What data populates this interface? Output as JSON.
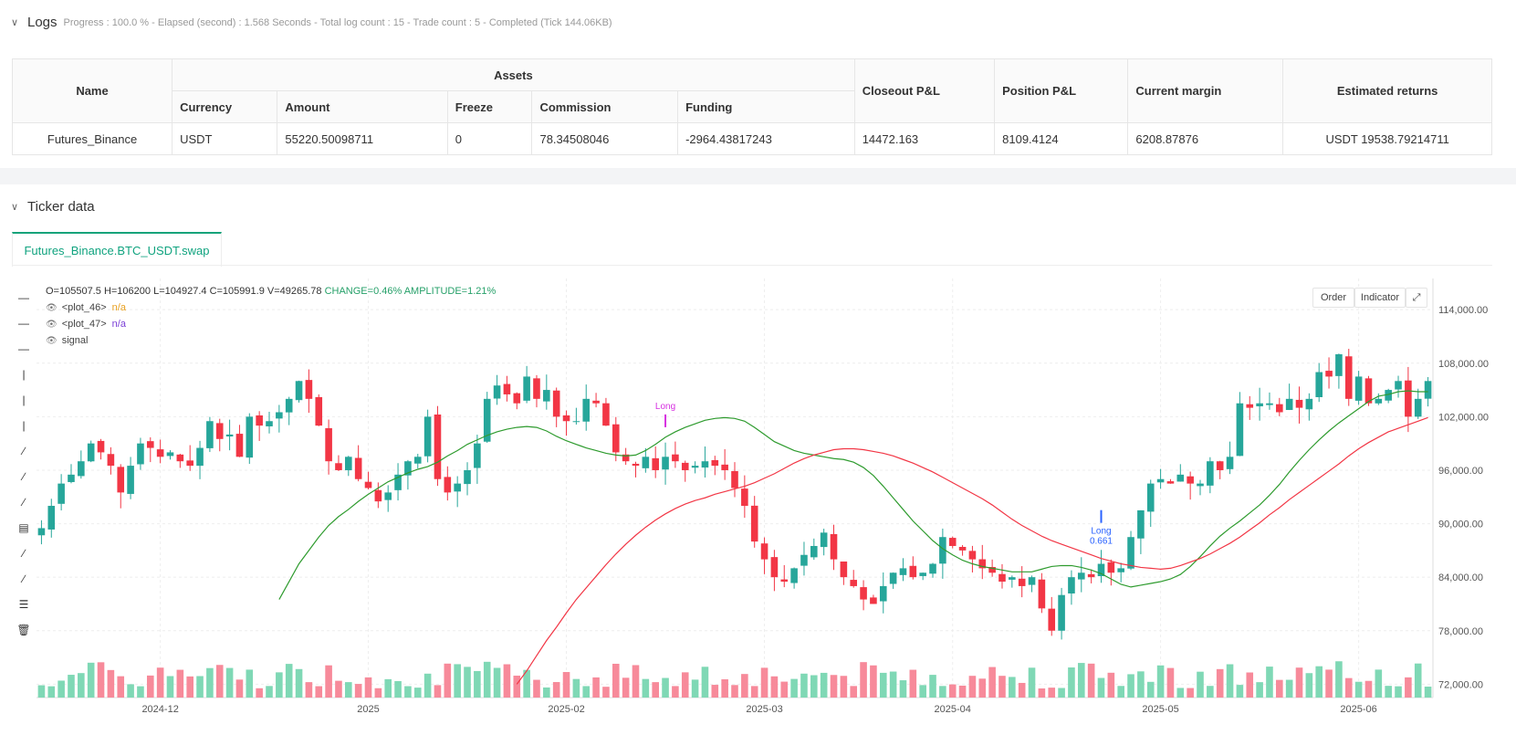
{
  "logs": {
    "title": "Logs",
    "status": "Progress : 100.0 % - Elapsed (second) : 1.568  Seconds - Total log count : 15 - Trade count : 5 - Completed (Tick 144.06KB)"
  },
  "table": {
    "headers": {
      "name": "Name",
      "assets": "Assets",
      "closeout_pl": "Closeout P&L",
      "position_pl": "Position P&L",
      "current_margin": "Current margin",
      "estimated_returns": "Estimated returns",
      "currency": "Currency",
      "amount": "Amount",
      "freeze": "Freeze",
      "commission": "Commission",
      "funding": "Funding"
    },
    "row": {
      "name": "Futures_Binance",
      "currency": "USDT",
      "amount": "55220.50098711",
      "freeze": "0",
      "commission": "78.34508046",
      "funding": "-2964.43817243",
      "closeout_pl": "14472.163",
      "position_pl": "8109.4124",
      "current_margin": "6208.87876",
      "estimated_returns": "USDT 19538.79214711"
    }
  },
  "ticker": {
    "title": "Ticker data",
    "tab": "Futures_Binance.BTC_USDT.swap",
    "ohlc": {
      "o": "O=105507.5",
      "h": "H=106200",
      "l": "L=104927.4",
      "c": "C=105991.9",
      "v": "V=49265.78",
      "change": "CHANGE=0.46%",
      "amplitude": "AMPLITUDE=1.21%"
    },
    "legend": [
      {
        "name": "<plot_46>",
        "value": "n/a"
      },
      {
        "name": "<plot_47>",
        "value": "n/a"
      },
      {
        "name": "signal",
        "value": ""
      }
    ],
    "buttons": {
      "order": "Order",
      "indicator": "Indicator"
    }
  },
  "icons": [
    "chevron-down-icon",
    "eye-icon",
    "fullscreen-icon",
    "trash-icon"
  ],
  "colors": {
    "up": "#26a69a",
    "down": "#f23645",
    "fast_ma": "#2e9b2e",
    "slow_ma": "#f23645",
    "accent": "#10a37f",
    "long_marker": "#d62fe0",
    "long_marker2": "#2962ff"
  },
  "chart_data": {
    "type": "candlestick",
    "x_ticks": [
      "2024-12",
      "2025",
      "2025-02",
      "2025-03",
      "2025-04",
      "2025-05",
      "2025-06"
    ],
    "x_tick_index": [
      12,
      33,
      53,
      73,
      92,
      113,
      133
    ],
    "y_ticks": [
      72000,
      78000,
      84000,
      90000,
      96000,
      102000,
      108000,
      114000
    ],
    "y_tick_labels": [
      "72,000.00",
      "78,000.00",
      "84,000.00",
      "90,000.00",
      "96,000.00",
      "102,000.00",
      "108,000.00",
      "114,000.00"
    ],
    "ylim": [
      70500,
      117500
    ],
    "closes": [
      89500,
      92000,
      94500,
      95500,
      97000,
      99000,
      98000,
      96500,
      93500,
      96500,
      99000,
      98500,
      97500,
      98000,
      97000,
      96500,
      98500,
      101500,
      99500,
      100000,
      97500,
      102000,
      101000,
      101500,
      102500,
      104000,
      106000,
      104000,
      101000,
      97000,
      96000,
      97500,
      95000,
      94000,
      92500,
      93500,
      95500,
      97000,
      97500,
      102000,
      95000,
      93500,
      94500,
      96000,
      99000,
      104000,
      105500,
      104500,
      103500,
      106500,
      104000,
      105000,
      102000,
      101500,
      101500,
      104000,
      103500,
      101000,
      98000,
      97000,
      96500,
      97500,
      96000,
      97500,
      97000,
      96000,
      96500,
      97000,
      96500,
      96000,
      94000,
      92000,
      88000,
      86000,
      84000,
      83500,
      85000,
      86500,
      87500,
      89000,
      86000,
      84000,
      83000,
      81500,
      81000,
      83000,
      84500,
      85000,
      84000,
      84500,
      85500,
      88500,
      87500,
      87000,
      86000,
      85000,
      84500,
      83500,
      84000,
      83000,
      84000,
      80500,
      78000,
      82000,
      84000,
      84500,
      84000,
      85500,
      84500,
      85000,
      88500,
      91500,
      94500,
      95000,
      94500,
      95500,
      94500,
      94500,
      97000,
      96000,
      97500,
      103500,
      103000,
      103500,
      103500,
      102500,
      104000,
      103000,
      104000,
      107000,
      106500,
      109000,
      104000,
      106500,
      103500,
      104000,
      105000,
      106000,
      102000,
      104000,
      106000
    ],
    "fast_ma": [
      81500,
      83500,
      85500,
      87000,
      88500,
      89800,
      90800,
      91600,
      92500,
      93300,
      94000,
      94700,
      95200,
      95700,
      96100,
      96400,
      96900,
      97600,
      98200,
      98900,
      99400,
      99900,
      100300,
      100600,
      100800,
      100900,
      100800,
      100400,
      99800,
      99300,
      98900,
      98500,
      98200,
      97900,
      97700,
      97600,
      97700,
      98200,
      98900,
      99700,
      100300,
      100800,
      101200,
      101600,
      101800,
      101900,
      101800,
      101500,
      100800,
      100000,
      99200,
      98700,
      98200,
      97900,
      97700,
      97500,
      97300,
      97200,
      96900,
      96300,
      95400,
      94200,
      92900,
      91600,
      90300,
      89200,
      88100,
      87200,
      86500,
      85900,
      85500,
      85200,
      85000,
      84800,
      84600,
      84600,
      84600,
      84900,
      85200,
      85300,
      85300,
      85100,
      84800,
      84400,
      83800,
      83200,
      82900,
      83100,
      83300,
      83500,
      83800,
      84300,
      85200,
      86300,
      87500,
      88600,
      89500,
      90300,
      91200,
      92100,
      93200,
      94400,
      95800,
      97100,
      98300,
      99400,
      100400,
      101300,
      102100,
      102900,
      103700,
      104300,
      104500,
      104800,
      104900,
      104800,
      104800
    ],
    "slow_ma": [
      72000,
      73500,
      75200,
      76900,
      78400,
      80000,
      81500,
      82800,
      84100,
      85400,
      86600,
      87700,
      88700,
      89600,
      90400,
      91100,
      91700,
      92200,
      92600,
      92900,
      93300,
      93600,
      93900,
      94200,
      94600,
      95100,
      95600,
      96200,
      96800,
      97300,
      97700,
      98000,
      98300,
      98400,
      98400,
      98300,
      98100,
      97900,
      97600,
      97200,
      96800,
      96300,
      95800,
      95200,
      94600,
      94000,
      93400,
      92800,
      92100,
      91300,
      90500,
      89800,
      89200,
      88600,
      88100,
      87700,
      87300,
      86900,
      86500,
      86100,
      85800,
      85500,
      85300,
      85100,
      85000,
      84900,
      85000,
      85300,
      85700,
      86100,
      86600,
      87200,
      87800,
      88500,
      89300,
      90100,
      91000,
      91800,
      92700,
      93500,
      94300,
      95100,
      95900,
      96700,
      97600,
      98400,
      99100,
      99700,
      100300,
      100700,
      101100,
      101500,
      101900
    ],
    "signals": [
      {
        "label": "Long",
        "index": 63,
        "price": 100000
      },
      {
        "label": "Long",
        "value": "0.661",
        "index": 107,
        "price": 90500
      }
    ]
  }
}
